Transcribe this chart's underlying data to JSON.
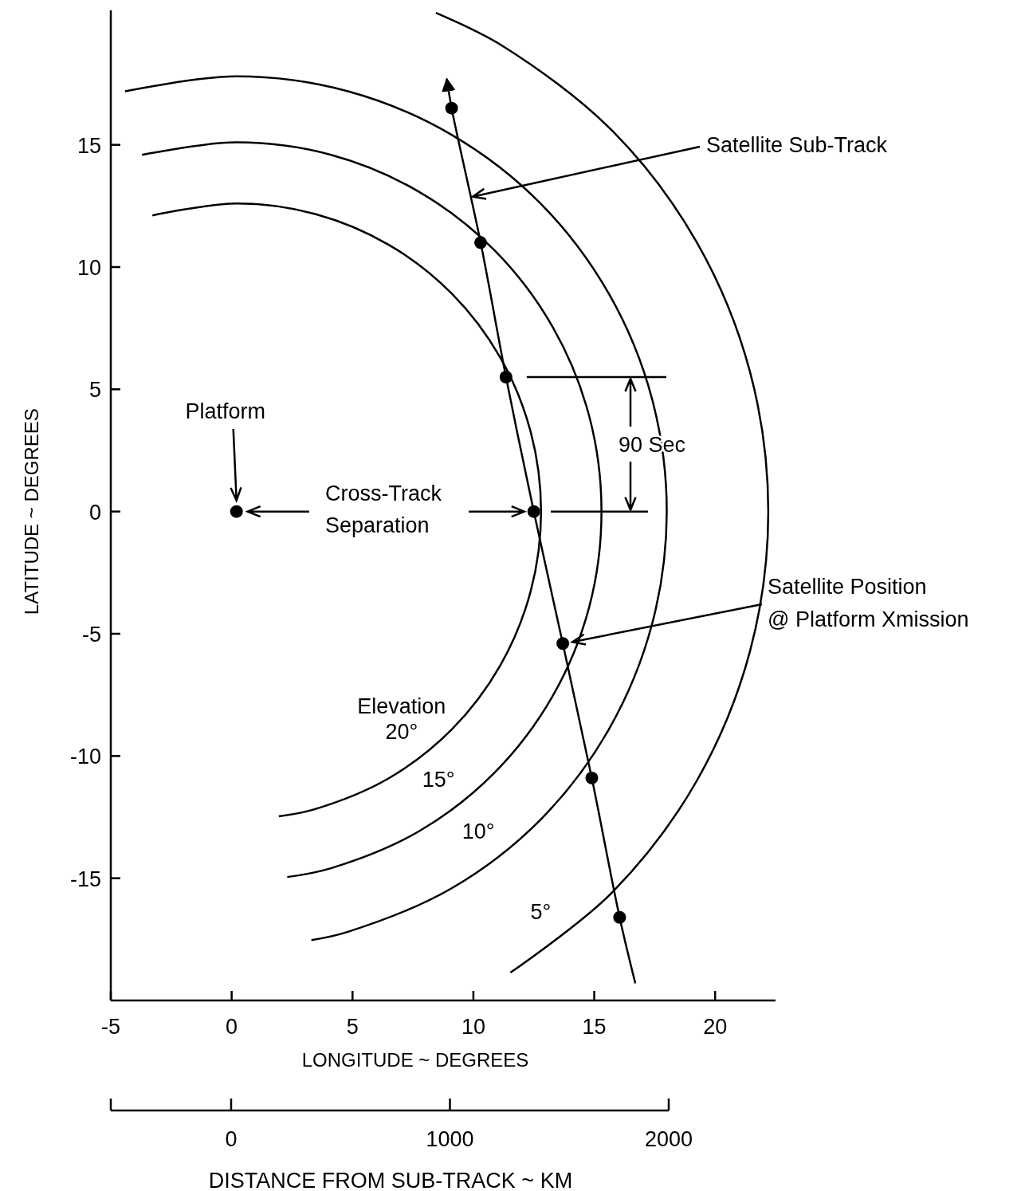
{
  "chart_data": {
    "type": "line",
    "xlabel": "LONGITUDE ~ DEGREES",
    "ylabel": "LATITUDE ~ DEGREES",
    "x2label": "DISTANCE FROM SUB-TRACK ~ KM",
    "xlim": [
      -5,
      22.5
    ],
    "xticks": [
      -5,
      0,
      5,
      10,
      15,
      20
    ],
    "ylim": [
      -20,
      20.5
    ],
    "yticks": [
      -15,
      -10,
      -5,
      0,
      5,
      10,
      15
    ],
    "x2lim": [
      -550,
      2000
    ],
    "x2ticks": [
      0,
      1000,
      2000
    ],
    "grid": false,
    "series": [
      {
        "name": "20°",
        "type": "line",
        "color": "#000000",
        "x": [
          -3.28,
          0.2,
          3.46,
          6.5,
          9.11,
          11.11,
          12.37,
          12.8,
          12.37,
          11.11,
          9.11,
          6.5,
          3.46,
          1.95
        ],
        "values": [
          12.11,
          12.6,
          12.17,
          10.91,
          8.91,
          6.3,
          3.26,
          0,
          -3.26,
          -6.3,
          -8.91,
          -10.91,
          -12.17,
          -12.47
        ]
      },
      {
        "name": "15°",
        "type": "line",
        "color": "#000000",
        "x": [
          -3.71,
          0.2,
          4.11,
          7.75,
          10.88,
          13.28,
          14.79,
          15.3,
          14.79,
          13.28,
          10.88,
          7.75,
          4.11,
          2.3
        ],
        "values": [
          14.59,
          15.1,
          14.59,
          13.08,
          10.68,
          7.55,
          3.91,
          0,
          -3.91,
          -7.55,
          -10.68,
          -13.08,
          -14.59,
          -14.95
        ]
      },
      {
        "name": "10°",
        "type": "line",
        "color": "#000000",
        "x": [
          -4.41,
          0.2,
          4.81,
          9.1,
          12.79,
          15.61,
          17.39,
          18.0,
          17.39,
          15.61,
          12.79,
          9.1,
          4.81,
          3.3
        ],
        "values": [
          17.19,
          17.8,
          17.19,
          15.41,
          12.59,
          8.9,
          4.61,
          0,
          -4.61,
          -8.9,
          -12.59,
          -15.41,
          -17.19,
          -17.53
        ]
      },
      {
        "name": "5°",
        "type": "line",
        "color": "#000000",
        "x": [
          8.45,
          11.2,
          15.76,
          19.25,
          21.45,
          22.2,
          21.45,
          19.25,
          15.76,
          11.53
        ],
        "values": [
          20.4,
          19.05,
          15.56,
          11.0,
          5.69,
          0,
          -5.69,
          -11.0,
          -15.56,
          -18.86
        ]
      },
      {
        "type": "line",
        "color": "#000000",
        "x": [
          8.9,
          9.1,
          10.3,
          11.35,
          12.5,
          13.7,
          14.9,
          16.05,
          16.7
        ],
        "values": [
          17.7,
          16.5,
          11.0,
          5.5,
          0,
          -5.4,
          -10.9,
          -16.6,
          -19.3
        ]
      },
      {
        "type": "scatter",
        "marker": "circle",
        "color": "#000000",
        "x": [
          9.1,
          10.3,
          11.35,
          12.5,
          13.7,
          14.9,
          16.05
        ],
        "values": [
          16.5,
          11.0,
          5.5,
          0,
          -5.4,
          -10.9,
          -16.6
        ]
      },
      {
        "type": "scatter",
        "marker": "circle",
        "color": "#000000",
        "x": [
          0.2
        ],
        "values": [
          0
        ]
      }
    ],
    "annotations": [
      {
        "text": "Satellite Sub-Track",
        "x": 9.97,
        "y": 12.88
      },
      "Platform",
      "Cross-Track Separation",
      "90 Sec",
      "Satellite Position @ Platform Xmission",
      "Elevation"
    ]
  }
}
